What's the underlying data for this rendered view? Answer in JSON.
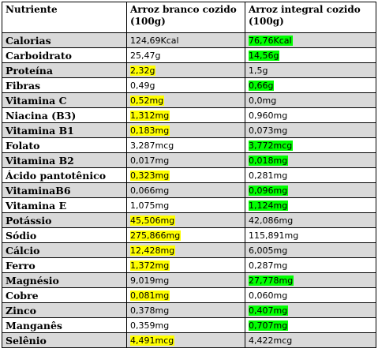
{
  "colors": {
    "better_white_rice": "#ffff00",
    "better_brown_rice": "#00ff00",
    "row_shade": "#d9d9d9"
  },
  "header": {
    "col1": "Nutriente",
    "col2": "Arroz branco cozido (100g)",
    "col3": "Arroz integral cozido (100g)"
  },
  "rows": [
    {
      "name": "Calorias",
      "branco": "124,69Kcal",
      "integral": "76,76Kcal",
      "hl": "integral"
    },
    {
      "name": "Carboidrato",
      "branco": "25,47g",
      "integral": "14,56g",
      "hl": "integral"
    },
    {
      "name": "Proteína",
      "branco": "2,32g",
      "integral": "1,5g",
      "hl": "branco"
    },
    {
      "name": "Fibras",
      "branco": "0,49g",
      "integral": "0,66g",
      "hl": "integral"
    },
    {
      "name": "Vitamina C",
      "branco": "0,52mg",
      "integral": "0,0mg",
      "hl": "branco"
    },
    {
      "name": "Niacina (B3)",
      "branco": "1,312mg",
      "integral": "0,960mg",
      "hl": "branco"
    },
    {
      "name": "Vitamina B1",
      "branco": "0,183mg",
      "integral": "0,073mg",
      "hl": "branco"
    },
    {
      "name": "Folato",
      "branco": "3,287mcg",
      "integral": "3,772mcg",
      "hl": "integral"
    },
    {
      "name": "Vitamina B2",
      "branco": "0,017mg",
      "integral": "0,018mg",
      "hl": "integral"
    },
    {
      "name": "Ácido pantotênico",
      "branco": "0,323mg",
      "integral": "0,281mg",
      "hl": "branco"
    },
    {
      "name": "VitaminaB6",
      "branco": "0,066mg",
      "integral": "0,096mg",
      "hl": "integral"
    },
    {
      "name": "Vitamina E",
      "branco": "1,075mg",
      "integral": "1,124mg",
      "hl": "integral"
    },
    {
      "name": "Potássio",
      "branco": "45,506mg",
      "integral": "42,086mg",
      "hl": "branco"
    },
    {
      "name": "Sódio",
      "branco": "275,866mg",
      "integral": "115,891mg",
      "hl": "branco"
    },
    {
      "name": "Cálcio",
      "branco": "12,428mg",
      "integral": "6,005mg",
      "hl": "branco"
    },
    {
      "name": "Ferro",
      "branco": "1,372mg",
      "integral": "0,287mg",
      "hl": "branco"
    },
    {
      "name": "Magnésio",
      "branco": "9,019mg",
      "integral": "27,778mg",
      "hl": "integral"
    },
    {
      "name": "Cobre",
      "branco": "0,081mg",
      "integral": "0,060mg",
      "hl": "branco"
    },
    {
      "name": "Zinco",
      "branco": "0,378mg",
      "integral": "0,407mg",
      "hl": "integral"
    },
    {
      "name": "Manganês",
      "branco": "0,359mg",
      "integral": "0,707mg",
      "hl": "integral"
    },
    {
      "name": "Selênio",
      "branco": "4,491mcg",
      "integral": "4,422mcg",
      "hl": "branco"
    }
  ]
}
